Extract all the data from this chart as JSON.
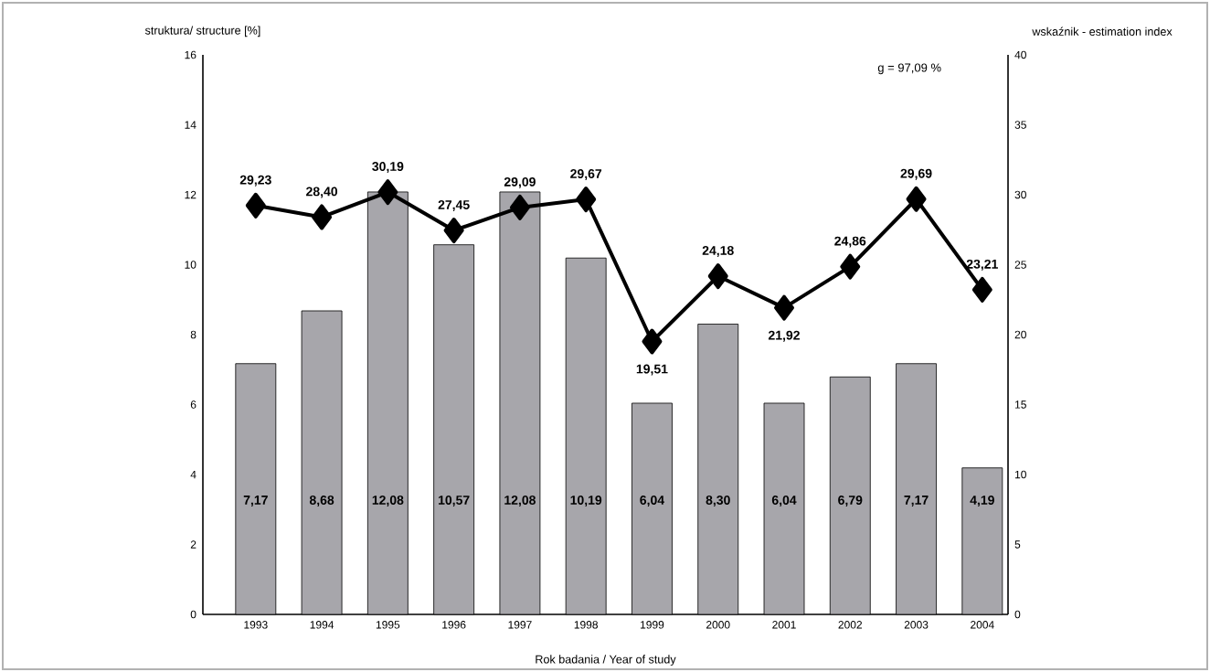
{
  "chart_data": {
    "type": "bar",
    "xlabel": "Rok badania / Year of study",
    "ylabel": "struktura/ structure [%]",
    "y2label": "wskaźnik - estimation index",
    "annotations": [
      "g = 97,09 %"
    ],
    "categories": [
      "1993",
      "1994",
      "1995",
      "1996",
      "1997",
      "1998",
      "1999",
      "2000",
      "2001",
      "2002",
      "2003",
      "2004"
    ],
    "series": [
      {
        "color": "#a7a6ab",
        "values": [
          7.17,
          8.68,
          12.08,
          10.57,
          12.08,
          10.19,
          6.04,
          8.3,
          6.04,
          6.79,
          7.17,
          4.19
        ],
        "value_labels": [
          "7,17",
          "8,68",
          "12,08",
          "10,57",
          "12,08",
          "10,19",
          "6,04",
          "8,30",
          "6,04",
          "6,79",
          "7,17",
          "4,19"
        ]
      },
      {
        "type": "line",
        "axis": "y2",
        "color": "#000000",
        "values": [
          29.23,
          28.4,
          30.19,
          27.45,
          29.09,
          29.67,
          19.51,
          24.18,
          21.92,
          24.86,
          29.69,
          23.21
        ],
        "value_labels": [
          "29,23",
          "28,40",
          "30,19",
          "27,45",
          "29,09",
          "29,67",
          "19,51",
          "24,18",
          "21,92",
          "24,86",
          "29,69",
          "23,21"
        ]
      }
    ],
    "ylim": [
      0,
      16
    ],
    "yticks": [
      0,
      2,
      4,
      6,
      8,
      10,
      12,
      14,
      16
    ],
    "y2lim": [
      0,
      40
    ],
    "y2ticks": [
      0,
      5,
      10,
      15,
      20,
      25,
      30,
      35,
      40
    ],
    "marker": "diamond",
    "line_style": "solid"
  }
}
